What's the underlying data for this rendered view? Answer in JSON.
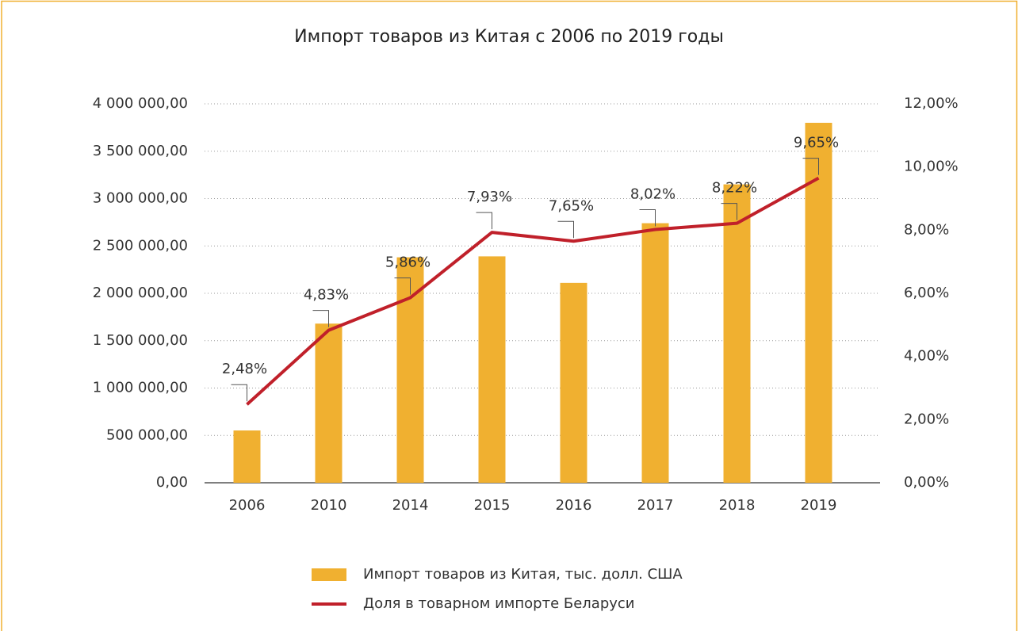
{
  "chart_data": {
    "type": "bar",
    "title": "Импорт товаров из Китая с 2006 по 2019 годы",
    "categories": [
      "2006",
      "2010",
      "2014",
      "2015",
      "2016",
      "2017",
      "2018",
      "2019"
    ],
    "series": [
      {
        "name": "Импорт товаров из Китая, тыс. долл. США",
        "type": "bar",
        "color": "#f0b030",
        "values": [
          552000,
          1680000,
          2380000,
          2390000,
          2110000,
          2740000,
          3150000,
          3800000
        ]
      },
      {
        "name": "Доля в товарном импорте Беларуси",
        "type": "line",
        "axis": "y2",
        "color": "#c0202a",
        "values": [
          2.48,
          4.83,
          5.86,
          7.93,
          7.65,
          8.02,
          8.22,
          9.65
        ],
        "value_labels": [
          "2,48%",
          "4,83%",
          "5,86%",
          "7,93%",
          "7,65%",
          "8,02%",
          "8,22%",
          "9,65%"
        ]
      }
    ],
    "ylim": [
      0,
      4000000
    ],
    "yticks": [
      {
        "value": 0,
        "label": "0,00"
      },
      {
        "value": 500000,
        "label": "500 000,00"
      },
      {
        "value": 1000000,
        "label": "1 000 000,00"
      },
      {
        "value": 1500000,
        "label": "1 500 000,00"
      },
      {
        "value": 2000000,
        "label": "2 000 000,00"
      },
      {
        "value": 2500000,
        "label": "2 500 000,00"
      },
      {
        "value": 3000000,
        "label": "3 000 000,00"
      },
      {
        "value": 3500000,
        "label": "3 500 000,00"
      },
      {
        "value": 4000000,
        "label": "4 000 000,00"
      }
    ],
    "y2lim": [
      0,
      12
    ],
    "y2ticks": [
      {
        "value": 0,
        "label": "0,00%"
      },
      {
        "value": 2,
        "label": "2,00%"
      },
      {
        "value": 4,
        "label": "4,00%"
      },
      {
        "value": 6,
        "label": "6,00%"
      },
      {
        "value": 8,
        "label": "8,00%"
      },
      {
        "value": 10,
        "label": "10,00%"
      },
      {
        "value": 12,
        "label": "12,00%"
      }
    ],
    "grid": true,
    "legend": "bottom"
  }
}
